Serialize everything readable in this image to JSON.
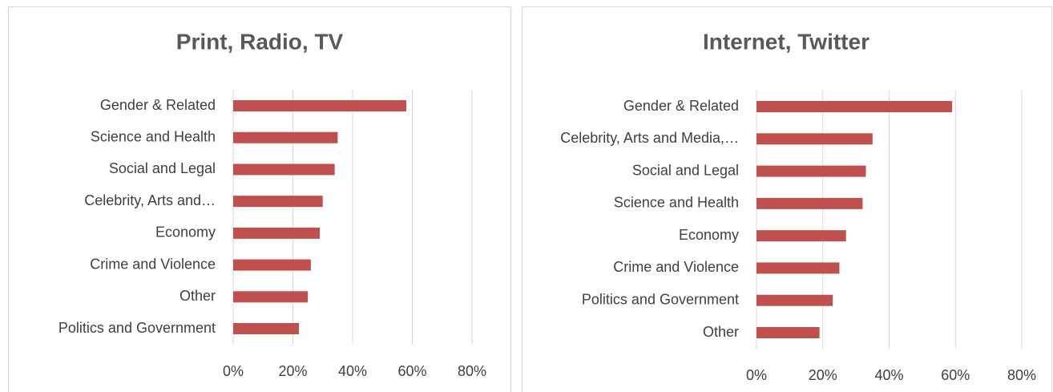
{
  "chart_data": [
    {
      "type": "bar",
      "orientation": "horizontal",
      "title": "Print, Radio, TV",
      "categories": [
        "Gender & Related",
        "Science and Health",
        "Social and Legal",
        "Celebrity, Arts and…",
        "Economy",
        "Crime and Violence",
        "Other",
        "Politics and Government"
      ],
      "values": [
        58,
        35,
        34,
        30,
        29,
        26,
        25,
        22
      ],
      "color": "#c0504d",
      "xlim": [
        0,
        80
      ],
      "xticks": [
        {
          "value": 0,
          "label": "0%"
        },
        {
          "value": 20,
          "label": "20%"
        },
        {
          "value": 40,
          "label": "40%"
        },
        {
          "value": 60,
          "label": "60%"
        },
        {
          "value": 80,
          "label": "80%"
        }
      ],
      "grid": true
    },
    {
      "type": "bar",
      "orientation": "horizontal",
      "title": "Internet, Twitter",
      "categories": [
        "Gender & Related",
        "Celebrity, Arts and Media,…",
        "Social and Legal",
        "Science and Health",
        "Economy",
        "Crime and Violence",
        "Politics and Government",
        "Other"
      ],
      "values": [
        59,
        35,
        33,
        32,
        27,
        25,
        23,
        19
      ],
      "color": "#c0504d",
      "xlim": [
        0,
        80
      ],
      "xticks": [
        {
          "value": 0,
          "label": "0%"
        },
        {
          "value": 20,
          "label": "20%"
        },
        {
          "value": 40,
          "label": "40%"
        },
        {
          "value": 60,
          "label": "60%"
        },
        {
          "value": 80,
          "label": "80%"
        }
      ],
      "grid": true
    }
  ]
}
